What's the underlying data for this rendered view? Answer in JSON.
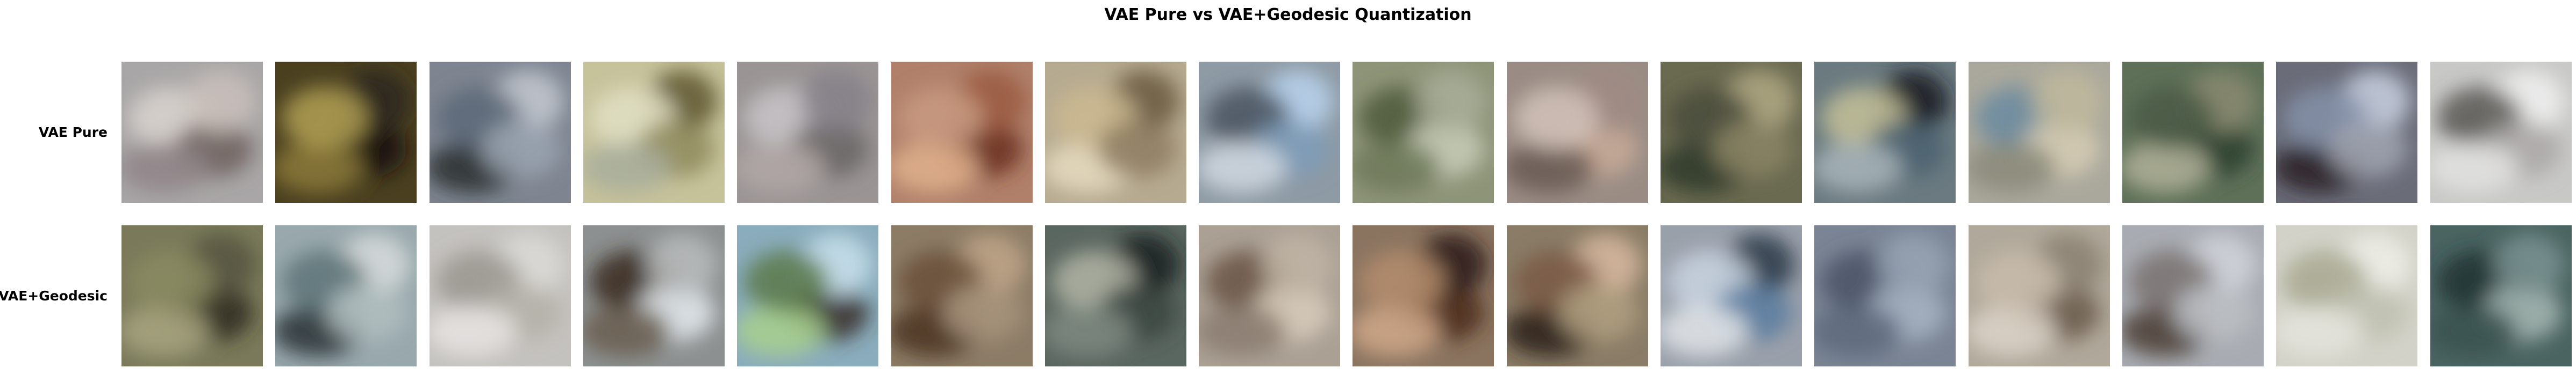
{
  "title": "VAE Pure vs VAE+Geodesic Quantization",
  "rows": [
    {
      "label": "VAE Pure",
      "tiles": [
        {
          "bg": "#a8a6a6",
          "blobs": [
            "#d9d4cf",
            "#6f625e",
            "#8f8487",
            "#c9c0bb"
          ]
        },
        {
          "bg": "#4a4020",
          "blobs": [
            "#141210",
            "#8c7a3a",
            "#2b261c",
            "#b0a054"
          ]
        },
        {
          "bg": "#7e8590",
          "blobs": [
            "#2a3030",
            "#c3c8d0",
            "#5c6878",
            "#9aa4b0"
          ]
        },
        {
          "bg": "#c6c29a",
          "blobs": [
            "#5e5630",
            "#e2dfc4",
            "#8e8a5c",
            "#a8ae9c"
          ]
        },
        {
          "bg": "#9a9494",
          "blobs": [
            "#c8c4c8",
            "#6a6464",
            "#b0a8a6",
            "#858088"
          ]
        },
        {
          "bg": "#b0806a",
          "blobs": [
            "#6a2e20",
            "#e0b08c",
            "#9a5a40",
            "#c89a80"
          ]
        },
        {
          "bg": "#b6aa90",
          "blobs": [
            "#e6dac0",
            "#6a5a40",
            "#cbb890",
            "#8e7c60"
          ]
        },
        {
          "bg": "#8e9aa4",
          "blobs": [
            "#b8d4ee",
            "#4a5460",
            "#7e9cb8",
            "#d0d8e0"
          ]
        },
        {
          "bg": "#8e9478",
          "blobs": [
            "#4e5a3a",
            "#c8ccb8",
            "#6e7a5a",
            "#a8ae98"
          ]
        },
        {
          "bg": "#9a8c84",
          "blobs": [
            "#c8aa98",
            "#6a5a54",
            "#a08a84",
            "#d2c2b8"
          ]
        },
        {
          "bg": "#6a6a50",
          "blobs": [
            "#2e3a2a",
            "#b0a884",
            "#4a4e3c",
            "#8a8464"
          ]
        },
        {
          "bg": "#6a7a80",
          "blobs": [
            "#141a20",
            "#c4c098",
            "#4a6070",
            "#a8b4b8"
          ]
        },
        {
          "bg": "#aaa89c",
          "blobs": [
            "#6a8aa0",
            "#d6ccb4",
            "#8a8a7a",
            "#c0b89c"
          ]
        },
        {
          "bg": "#5e7058",
          "blobs": [
            "#2a4030",
            "#b0b098",
            "#8a8a70",
            "#4a5a44"
          ]
        },
        {
          "bg": "#6a6c78",
          "blobs": [
            "#2a2026",
            "#c8d0e0",
            "#8490a8",
            "#a0a4b0"
          ]
        },
        {
          "bg": "#c8c8c6",
          "blobs": [
            "#f0f0f0",
            "#5a5854",
            "#aaa8a6",
            "#e2e2e0"
          ]
        }
      ]
    },
    {
      "label": "VAE+Geodesic",
      "tiles": [
        {
          "bg": "#7a7a5a",
          "blobs": [
            "#2e2a1e",
            "#a8a480",
            "#565440",
            "#8a8a60"
          ]
        },
        {
          "bg": "#98a8ac",
          "blobs": [
            "#2a3436",
            "#d8dcdc",
            "#5e7478",
            "#b0bec0"
          ]
        },
        {
          "bg": "#c4c2be",
          "blobs": [
            "#dcdad6",
            "#9a9690",
            "#b4b0a8",
            "#e6e4e2"
          ]
        },
        {
          "bg": "#8c9090",
          "blobs": [
            "#3a2a1e",
            "#e4eaee",
            "#6a5e50",
            "#b8bcbc"
          ]
        },
        {
          "bg": "#8aacbc",
          "blobs": [
            "#3a3028",
            "#a8d08c",
            "#c8e0ec",
            "#5c7a4a"
          ]
        },
        {
          "bg": "#8c7c66",
          "blobs": [
            "#4a3220",
            "#c0a688",
            "#6a5038",
            "#a8947c"
          ]
        },
        {
          "bg": "#5a6660",
          "blobs": [
            "#1a1e1c",
            "#b0b4a4",
            "#3a443e",
            "#7e8a80"
          ]
        },
        {
          "bg": "#aaa094",
          "blobs": [
            "#6a5444",
            "#d8ccbc",
            "#8a7c70",
            "#c0b4a4"
          ]
        },
        {
          "bg": "#8a7460",
          "blobs": [
            "#4a2818",
            "#d0a888",
            "#2a1a14",
            "#b48c6c"
          ]
        },
        {
          "bg": "#8a7c66",
          "blobs": [
            "#2a1e18",
            "#d8b8a0",
            "#7a5a44",
            "#b0a080"
          ]
        },
        {
          "bg": "#9aa0aa",
          "blobs": [
            "#2a3848",
            "#c8d4e0",
            "#5a7ca0",
            "#e0e4e8"
          ]
        },
        {
          "bg": "#7a8494",
          "blobs": [
            "#4a5466",
            "#a8b4c4",
            "#5e6a7c",
            "#98a4b4"
          ]
        },
        {
          "bg": "#b0a89a",
          "blobs": [
            "#6a5a4a",
            "#dcd4c8",
            "#8a8072",
            "#c8bcac"
          ]
        },
        {
          "bg": "#a8acb2",
          "blobs": [
            "#4a3c34",
            "#d0d4da",
            "#7a7270",
            "#bcc0c4"
          ]
        },
        {
          "bg": "#d2d2c8",
          "blobs": [
            "#eeeee8",
            "#a8a890",
            "#c0c0b0",
            "#e4e4dc"
          ]
        },
        {
          "bg": "#4a6462",
          "blobs": [
            "#1e3432",
            "#a8b8b4",
            "#3a5250",
            "#7a9290"
          ]
        }
      ]
    }
  ]
}
